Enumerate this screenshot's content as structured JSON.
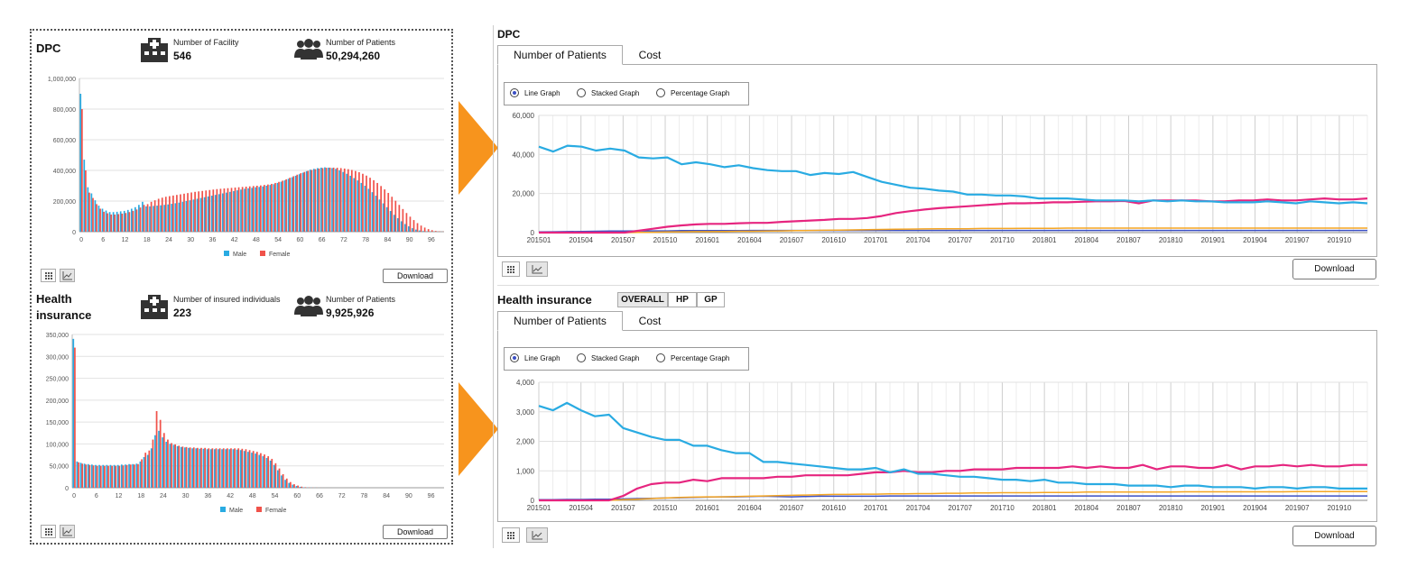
{
  "left": {
    "dpc": {
      "title": "DPC",
      "facility_label": "Number of Facility",
      "facility_value": "546",
      "patients_label": "Number of Patients",
      "patients_value": "50,294,260",
      "legend": [
        "Male",
        "Female"
      ],
      "download": "Download"
    },
    "health": {
      "title_line1": "Health",
      "title_line2": "insurance",
      "insured_label": "Number of insured individuals",
      "insured_value": "223",
      "patients_label": "Number of Patients",
      "patients_value": "9,925,926",
      "legend": [
        "Male",
        "Female"
      ],
      "download": "Download"
    }
  },
  "right": {
    "dpc": {
      "title": "DPC",
      "tabs": [
        "Number of Patients",
        "Cost"
      ],
      "radios": [
        "Line Graph",
        "Stacked Graph",
        "Percentage Graph"
      ],
      "selected_radio": 0,
      "download": "Download"
    },
    "health": {
      "title": "Health insurance",
      "segments": [
        "OVERALL",
        "HP",
        "GP"
      ],
      "selected_segment": 0,
      "tabs": [
        "Number of Patients",
        "Cost"
      ],
      "radios": [
        "Line Graph",
        "Stacked Graph",
        "Percentage Graph"
      ],
      "selected_radio": 0,
      "download": "Download"
    }
  },
  "colors": {
    "male": "#29abe2",
    "female": "#f0524a",
    "line_blue": "#29abe2",
    "line_pink": "#e6257f",
    "line_orange": "#f5a623",
    "line_navy": "#3b4fc4",
    "arrow": "#f7941d"
  },
  "chart_data": [
    {
      "type": "bar",
      "ylim": [
        0,
        1000000
      ],
      "yticks": [
        "0",
        "200,000",
        "400,000",
        "600,000",
        "800,000",
        "1,000,000"
      ],
      "xticks": [
        "0",
        "6",
        "12",
        "18",
        "24",
        "30",
        "36",
        "42",
        "48",
        "54",
        "60",
        "66",
        "72",
        "78",
        "84",
        "90",
        "96"
      ],
      "x": [
        0,
        1,
        2,
        3,
        4,
        5,
        6,
        7,
        8,
        9,
        10,
        11,
        12,
        13,
        14,
        15,
        16,
        17,
        18,
        19,
        20,
        21,
        22,
        23,
        24,
        25,
        26,
        27,
        28,
        29,
        30,
        31,
        32,
        33,
        34,
        35,
        36,
        37,
        38,
        39,
        40,
        41,
        42,
        43,
        44,
        45,
        46,
        47,
        48,
        49,
        50,
        51,
        52,
        53,
        54,
        55,
        56,
        57,
        58,
        59,
        60,
        61,
        62,
        63,
        64,
        65,
        66,
        67,
        68,
        69,
        70,
        71,
        72,
        73,
        74,
        75,
        76,
        77,
        78,
        79,
        80,
        81,
        82,
        83,
        84,
        85,
        86,
        87,
        88,
        89,
        90,
        91,
        92,
        93,
        94,
        95,
        96,
        97,
        98,
        99
      ],
      "series": [
        {
          "name": "Male",
          "values": [
            900000,
            470000,
            290000,
            250000,
            205000,
            170000,
            150000,
            138000,
            128000,
            128000,
            130000,
            133000,
            136000,
            142000,
            150000,
            160000,
            175000,
            195000,
            165000,
            165000,
            168000,
            170000,
            172000,
            175000,
            178000,
            182000,
            186000,
            190000,
            195000,
            200000,
            205000,
            210000,
            215000,
            220000,
            225000,
            230000,
            235000,
            240000,
            245000,
            250000,
            255000,
            260000,
            265000,
            270000,
            275000,
            280000,
            283000,
            286000,
            290000,
            292000,
            295000,
            300000,
            305000,
            310000,
            318000,
            326000,
            335000,
            345000,
            355000,
            365000,
            375000,
            385000,
            395000,
            405000,
            410000,
            415000,
            418000,
            420000,
            418000,
            415000,
            410000,
            400000,
            390000,
            378000,
            365000,
            350000,
            335000,
            318000,
            300000,
            280000,
            258000,
            235000,
            210000,
            185000,
            160000,
            135000,
            110000,
            88000,
            68000,
            50000,
            35000,
            23000,
            14000,
            8000,
            4500,
            2500,
            1200,
            600,
            250,
            100
          ]
        },
        {
          "name": "Female",
          "values": [
            800000,
            400000,
            255000,
            220000,
            180000,
            150000,
            130000,
            120000,
            112000,
            112000,
            115000,
            118000,
            122000,
            128000,
            136000,
            145000,
            158000,
            175000,
            180000,
            195000,
            205000,
            215000,
            222000,
            228000,
            232000,
            236000,
            240000,
            244000,
            248000,
            252000,
            256000,
            260000,
            263000,
            266000,
            269000,
            272000,
            275000,
            278000,
            280000,
            282000,
            284000,
            286000,
            288000,
            290000,
            292000,
            294000,
            296000,
            298000,
            300000,
            302000,
            305000,
            308000,
            312000,
            318000,
            325000,
            333000,
            342000,
            352000,
            362000,
            372000,
            382000,
            390000,
            397000,
            403000,
            408000,
            412000,
            415000,
            417000,
            418000,
            418000,
            417000,
            415000,
            412000,
            408000,
            403000,
            396000,
            388000,
            378000,
            366000,
            352000,
            336000,
            318000,
            298000,
            276000,
            253000,
            228000,
            202000,
            175000,
            148000,
            122000,
            98000,
            76000,
            56000,
            40000,
            27000,
            17000,
            10000,
            5000,
            2500,
            1000
          ]
        }
      ]
    },
    {
      "type": "line",
      "ylim": [
        0,
        60000
      ],
      "yticks": [
        "0",
        "20,000",
        "40,000",
        "60,000"
      ],
      "xticks": [
        "201501",
        "201504",
        "201507",
        "201510",
        "201601",
        "201604",
        "201607",
        "201610",
        "201701",
        "201704",
        "201707",
        "201710",
        "201801",
        "201804",
        "201807",
        "201810",
        "201901",
        "201904",
        "201907",
        "201910"
      ],
      "series": [
        {
          "name": "",
          "color": "blue",
          "values": [
            44000,
            41500,
            44500,
            44000,
            42000,
            43000,
            42000,
            38500,
            38000,
            38500,
            35000,
            36000,
            35000,
            33500,
            34500,
            33000,
            32000,
            31500,
            31500,
            29500,
            30500,
            30000,
            31000,
            28500,
            26000,
            24500,
            23000,
            22500,
            21500,
            21000,
            19500,
            19500,
            19000,
            19000,
            18500,
            17500,
            17500,
            17500,
            17000,
            16500,
            16500,
            16500,
            16000,
            16500,
            16000,
            16500,
            16000,
            16000,
            15500,
            15500,
            15500,
            16000,
            15500,
            15000,
            16000,
            15500,
            15000,
            15500,
            15000
          ]
        },
        {
          "name": "",
          "color": "pink",
          "values": [
            0,
            0,
            0,
            0,
            0,
            0,
            0,
            1000,
            2000,
            3000,
            3700,
            4200,
            4500,
            4500,
            4800,
            5000,
            5000,
            5500,
            5800,
            6200,
            6500,
            7000,
            7000,
            7500,
            8500,
            10000,
            11000,
            11800,
            12500,
            13000,
            13500,
            14000,
            14500,
            15000,
            15000,
            15200,
            15500,
            15500,
            15800,
            16000,
            16000,
            16200,
            15000,
            16500,
            16500,
            16500,
            16500,
            16000,
            16000,
            16500,
            16500,
            17000,
            16500,
            16500,
            17000,
            17500,
            17000,
            17000,
            17500
          ]
        },
        {
          "name": "",
          "color": "orange",
          "values": [
            0,
            0,
            0,
            0,
            0,
            0,
            0,
            100,
            200,
            300,
            400,
            500,
            500,
            600,
            700,
            700,
            800,
            900,
            1000,
            1100,
            1200,
            1300,
            1400,
            1500,
            1600,
            1700,
            1800,
            1900,
            2000,
            2000,
            2000,
            2100,
            2100,
            2100,
            2200,
            2200,
            2200,
            2300,
            2300,
            2300,
            2300,
            2300,
            2300,
            2300,
            2300,
            2300,
            2300,
            2300,
            2300,
            2300,
            2300,
            2300,
            2300,
            2300,
            2300,
            2300,
            2300,
            2300,
            2300
          ]
        },
        {
          "name": "",
          "color": "navy",
          "values": [
            300,
            400,
            500,
            600,
            700,
            800,
            800,
            900,
            900,
            900,
            1000,
            1000,
            1000,
            1000,
            1000,
            1100,
            1100,
            1100,
            1100,
            1100,
            1100,
            1100,
            1100,
            1100,
            1100,
            1100,
            1100,
            1100,
            1100,
            1100,
            1100,
            1100,
            1100,
            1100,
            1100,
            1100,
            1100,
            1100,
            1100,
            1100,
            1100,
            1100,
            1100,
            1100,
            1100,
            1100,
            1100,
            1100,
            1100,
            1100,
            1100,
            1100,
            1100,
            1100,
            1100,
            1100,
            1100,
            1100,
            1100
          ]
        }
      ]
    },
    {
      "type": "line",
      "ylim": [
        0,
        4000
      ],
      "yticks": [
        "0",
        "1,000",
        "2,000",
        "3,000",
        "4,000"
      ],
      "xticks": [
        "201501",
        "201504",
        "201507",
        "201510",
        "201601",
        "201604",
        "201607",
        "201610",
        "201701",
        "201704",
        "201707",
        "201710",
        "201801",
        "201804",
        "201807",
        "201810",
        "201901",
        "201904",
        "201907",
        "201910"
      ],
      "series": [
        {
          "name": "",
          "color": "blue",
          "values": [
            3200,
            3050,
            3300,
            3050,
            2850,
            2900,
            2450,
            2300,
            2150,
            2050,
            2050,
            1850,
            1850,
            1700,
            1600,
            1600,
            1300,
            1300,
            1250,
            1200,
            1150,
            1100,
            1050,
            1050,
            1100,
            950,
            1050,
            900,
            900,
            850,
            800,
            800,
            750,
            700,
            700,
            650,
            700,
            600,
            600,
            550,
            550,
            550,
            500,
            500,
            500,
            450,
            500,
            500,
            450,
            450,
            450,
            400,
            450,
            450,
            400,
            450,
            450,
            400,
            400,
            400
          ]
        },
        {
          "name": "",
          "color": "pink",
          "values": [
            0,
            0,
            0,
            0,
            0,
            0,
            150,
            400,
            550,
            600,
            600,
            700,
            650,
            750,
            750,
            750,
            750,
            800,
            800,
            850,
            850,
            850,
            850,
            900,
            950,
            950,
            1000,
            950,
            950,
            1000,
            1000,
            1050,
            1050,
            1050,
            1100,
            1100,
            1100,
            1100,
            1150,
            1100,
            1150,
            1100,
            1100,
            1200,
            1050,
            1150,
            1150,
            1100,
            1100,
            1200,
            1050,
            1150,
            1150,
            1200,
            1150,
            1200,
            1150,
            1150,
            1200,
            1200
          ]
        },
        {
          "name": "",
          "color": "orange",
          "values": [
            0,
            0,
            0,
            0,
            0,
            0,
            20,
            40,
            60,
            80,
            100,
            110,
            120,
            120,
            130,
            140,
            150,
            160,
            170,
            180,
            190,
            200,
            200,
            210,
            210,
            220,
            220,
            230,
            230,
            240,
            240,
            250,
            250,
            260,
            260,
            260,
            270,
            270,
            270,
            280,
            280,
            280,
            280,
            280,
            280,
            280,
            290,
            290,
            290,
            290,
            290,
            290,
            290,
            290,
            300,
            300,
            300,
            300,
            300,
            300
          ]
        },
        {
          "name": "",
          "color": "navy",
          "values": [
            20,
            20,
            30,
            30,
            40,
            40,
            50,
            60,
            70,
            80,
            90,
            100,
            110,
            120,
            120,
            130,
            140,
            130,
            120,
            130,
            140,
            140,
            140,
            140,
            140,
            150,
            150,
            150,
            150,
            150,
            150,
            150,
            150,
            150,
            150,
            150,
            150,
            150,
            150,
            150,
            150,
            150,
            150,
            150,
            150,
            150,
            150,
            150,
            150,
            150,
            150,
            150,
            150,
            150,
            150,
            150,
            150,
            150,
            150,
            150
          ]
        }
      ]
    }
  ]
}
